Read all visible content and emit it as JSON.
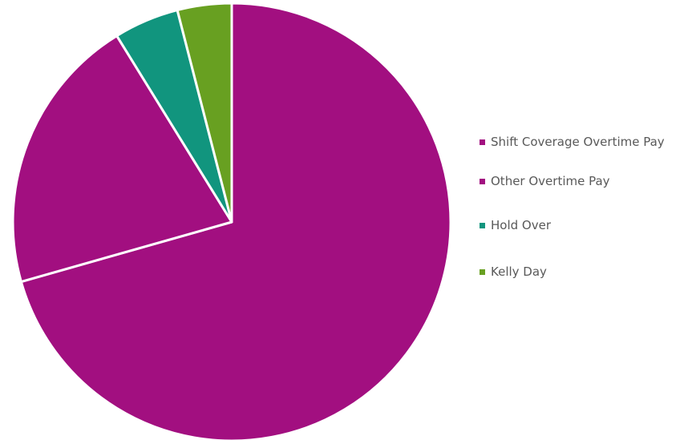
{
  "chart_data": {
    "type": "pie",
    "title": "",
    "slices": [
      {
        "label": "Shift Coverage Overtime Pay",
        "value": 70.6,
        "color": "#a20f80"
      },
      {
        "label": "Other Overtime Pay",
        "value": 20.6,
        "color": "#a20f80"
      },
      {
        "label": "Hold Over",
        "value": 4.8,
        "color": "#11957e"
      },
      {
        "label": "Kelly Day",
        "value": 4.0,
        "color": "#68a021"
      }
    ],
    "legend_position": "right"
  }
}
